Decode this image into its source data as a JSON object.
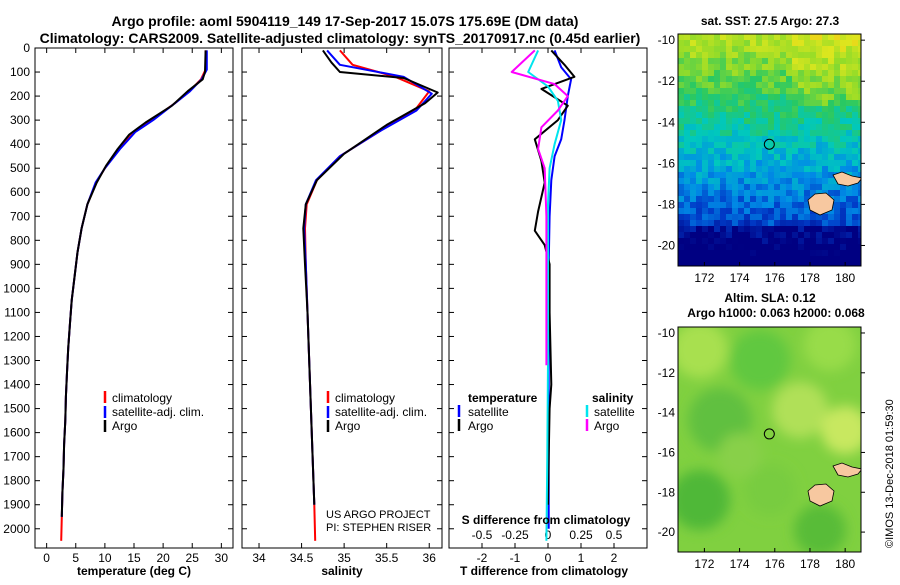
{
  "header": {
    "title_line1": "Argo profile: aoml 5904119_149 17-Sep-2017 15.07S 175.69E (DM data)",
    "title_line2": "Climatology: CARS2009. Satellite-adjusted climatology: synTS_20170917.nc (0.45d earlier)"
  },
  "credit": {
    "line1": "US ARGO PROJECT",
    "line2": "PI: STEPHEN RISER",
    "timestamp": "©IMOS 13-Dec-2018 01:59:30"
  },
  "colors": {
    "climatology": "#ff0000",
    "satellite": "#0000ff",
    "argo": "#000000",
    "s_satellite": "#00e5ee",
    "s_argo": "#ff00ff"
  },
  "chart_data": [
    {
      "id": "temperature",
      "type": "line",
      "xlabel": "temperature (deg C)",
      "ylabel": "",
      "xlim": [
        -2,
        32
      ],
      "ylim": [
        2080,
        0
      ],
      "xticks": [
        0,
        5,
        10,
        15,
        20,
        25,
        30
      ],
      "yticks": [
        0,
        100,
        200,
        300,
        400,
        500,
        600,
        700,
        800,
        900,
        1000,
        1100,
        1200,
        1300,
        1400,
        1500,
        1600,
        1700,
        1800,
        1900,
        2000
      ],
      "legend": [
        "climatology",
        "satellite-adj. clim.",
        "Argo"
      ],
      "series": [
        {
          "name": "climatology",
          "color": "#ff0000",
          "points": [
            [
              27.3,
              10
            ],
            [
              27.3,
              90
            ],
            [
              26.5,
              130
            ],
            [
              24.5,
              180
            ],
            [
              22,
              230
            ],
            [
              18,
              300
            ],
            [
              15,
              350
            ],
            [
              12.5,
              420
            ],
            [
              10,
              500
            ],
            [
              8.5,
              560
            ],
            [
              7,
              650
            ],
            [
              6,
              750
            ],
            [
              5.3,
              850
            ],
            [
              4.8,
              950
            ],
            [
              4.3,
              1050
            ],
            [
              4,
              1150
            ],
            [
              3.7,
              1250
            ],
            [
              3.5,
              1350
            ],
            [
              3.3,
              1450
            ],
            [
              3.2,
              1550
            ],
            [
              3,
              1650
            ],
            [
              2.9,
              1750
            ],
            [
              2.7,
              1850
            ],
            [
              2.6,
              1950
            ],
            [
              2.5,
              2050
            ]
          ]
        },
        {
          "name": "satellite-adj. clim.",
          "color": "#0000ff",
          "points": [
            [
              27.5,
              10
            ],
            [
              27.5,
              90
            ],
            [
              26.6,
              130
            ],
            [
              24.6,
              180
            ],
            [
              22,
              230
            ],
            [
              18.3,
              300
            ],
            [
              15.2,
              350
            ],
            [
              12.6,
              420
            ],
            [
              10,
              500
            ],
            [
              8.4,
              560
            ],
            [
              7,
              650
            ],
            [
              6,
              750
            ],
            [
              5.3,
              850
            ],
            [
              4.8,
              950
            ],
            [
              4.3,
              1050
            ],
            [
              4,
              1150
            ],
            [
              3.7,
              1250
            ],
            [
              3.5,
              1350
            ],
            [
              3.3,
              1450
            ],
            [
              3.2,
              1550
            ],
            [
              3,
              1650
            ],
            [
              2.9,
              1750
            ],
            [
              2.7,
              1850
            ],
            [
              2.6,
              1950
            ]
          ]
        },
        {
          "name": "Argo",
          "color": "#000000",
          "points": [
            [
              27.3,
              10
            ],
            [
              27.2,
              100
            ],
            [
              26.8,
              130
            ],
            [
              24.2,
              180
            ],
            [
              21.5,
              240
            ],
            [
              17,
              310
            ],
            [
              14.2,
              360
            ],
            [
              12.2,
              420
            ],
            [
              10.2,
              490
            ],
            [
              8.6,
              560
            ],
            [
              7,
              650
            ],
            [
              6,
              750
            ],
            [
              5.3,
              850
            ],
            [
              4.8,
              950
            ],
            [
              4.3,
              1050
            ],
            [
              4,
              1150
            ],
            [
              3.7,
              1250
            ],
            [
              3.5,
              1350
            ],
            [
              3.3,
              1450
            ],
            [
              3.2,
              1550
            ],
            [
              3,
              1650
            ],
            [
              2.9,
              1750
            ],
            [
              2.7,
              1850
            ],
            [
              2.6,
              1950
            ]
          ]
        }
      ]
    },
    {
      "id": "salinity",
      "type": "line",
      "xlabel": "salinity",
      "ylabel": "",
      "xlim": [
        33.8,
        36.15
      ],
      "ylim": [
        2080,
        0
      ],
      "xticks": [
        34,
        34.5,
        35,
        35.5,
        36
      ],
      "xticklabels": [
        "34",
        "34.5",
        "35",
        "35.5",
        "36"
      ],
      "legend": [
        "climatology",
        "satellite-adj. clim.",
        "Argo"
      ],
      "series": [
        {
          "name": "climatology",
          "color": "#ff0000",
          "points": [
            [
              34.95,
              10
            ],
            [
              35.1,
              70
            ],
            [
              35.6,
              120
            ],
            [
              36.0,
              180
            ],
            [
              35.85,
              250
            ],
            [
              35.4,
              350
            ],
            [
              34.95,
              450
            ],
            [
              34.68,
              550
            ],
            [
              34.56,
              650
            ],
            [
              34.54,
              750
            ],
            [
              34.55,
              900
            ],
            [
              34.57,
              1100
            ],
            [
              34.59,
              1300
            ],
            [
              34.61,
              1500
            ],
            [
              34.63,
              1700
            ],
            [
              34.65,
              1900
            ],
            [
              34.66,
              2050
            ]
          ]
        },
        {
          "name": "satellite-adj. clim.",
          "color": "#0000ff",
          "points": [
            [
              34.8,
              10
            ],
            [
              34.95,
              70
            ],
            [
              35.7,
              120
            ],
            [
              36.03,
              190
            ],
            [
              35.85,
              260
            ],
            [
              35.4,
              350
            ],
            [
              34.95,
              450
            ],
            [
              34.67,
              550
            ],
            [
              34.55,
              650
            ],
            [
              34.53,
              750
            ],
            [
              34.55,
              900
            ],
            [
              34.57,
              1100
            ],
            [
              34.59,
              1300
            ],
            [
              34.61,
              1500
            ],
            [
              34.63,
              1700
            ],
            [
              34.65,
              1900
            ]
          ]
        },
        {
          "name": "Argo",
          "color": "#000000",
          "points": [
            [
              34.75,
              10
            ],
            [
              34.85,
              60
            ],
            [
              34.95,
              100
            ],
            [
              35.7,
              125
            ],
            [
              36.1,
              185
            ],
            [
              35.95,
              230
            ],
            [
              35.5,
              320
            ],
            [
              35.0,
              440
            ],
            [
              34.68,
              550
            ],
            [
              34.55,
              650
            ],
            [
              34.52,
              750
            ],
            [
              34.54,
              900
            ],
            [
              34.57,
              1100
            ],
            [
              34.59,
              1300
            ],
            [
              34.61,
              1500
            ],
            [
              34.63,
              1700
            ],
            [
              34.65,
              1900
            ]
          ]
        }
      ]
    },
    {
      "id": "differences",
      "type": "line",
      "xlabel": "T difference from climatology",
      "xlabel2": "S difference from climatology",
      "ylabel": "",
      "xlim": [
        -3,
        3
      ],
      "ylim": [
        2080,
        0
      ],
      "xticks": [
        -2,
        -1,
        0,
        1,
        2
      ],
      "xticks_s": [
        -0.5,
        -0.25,
        0,
        0.25,
        0.5
      ],
      "xticklabels_s": [
        "-0.5",
        "-0.25",
        "0",
        "0.25",
        "0.5"
      ],
      "legend_t_title": "temperature",
      "legend_s_title": "salinity",
      "legend_t": [
        "satellite",
        "Argo"
      ],
      "legend_s": [
        "satellite",
        "Argo"
      ],
      "series": [
        {
          "name": "T satellite",
          "color": "#0000ff",
          "points": [
            [
              0.2,
              10
            ],
            [
              0.4,
              80
            ],
            [
              0.7,
              130
            ],
            [
              0.6,
              200
            ],
            [
              0.5,
              300
            ],
            [
              0.4,
              380
            ],
            [
              0.2,
              450
            ],
            [
              0.1,
              550
            ],
            [
              0.05,
              700
            ],
            [
              0.02,
              900
            ],
            [
              0.02,
              1100
            ],
            [
              0.02,
              1400
            ],
            [
              0.02,
              1800
            ],
            [
              0.02,
              2000
            ]
          ]
        },
        {
          "name": "T Argo",
          "color": "#000000",
          "points": [
            [
              0.1,
              10
            ],
            [
              0.5,
              70
            ],
            [
              0.8,
              120
            ],
            [
              -0.2,
              170
            ],
            [
              0.6,
              240
            ],
            [
              0.3,
              300
            ],
            [
              -0.4,
              380
            ],
            [
              -0.2,
              470
            ],
            [
              -0.1,
              560
            ],
            [
              -0.3,
              680
            ],
            [
              -0.4,
              760
            ],
            [
              -0.1,
              820
            ],
            [
              0.05,
              900
            ],
            [
              0.05,
              1100
            ],
            [
              0.1,
              1400
            ],
            [
              0.05,
              1500
            ],
            [
              0.02,
              1700
            ],
            [
              0.0,
              1900
            ]
          ]
        },
        {
          "name": "S satellite",
          "color": "#00e5ee",
          "points": [
            [
              -0.3,
              10
            ],
            [
              -0.6,
              100
            ],
            [
              0.0,
              160
            ],
            [
              0.3,
              220
            ],
            [
              0.4,
              300
            ],
            [
              0.2,
              400
            ],
            [
              0.05,
              500
            ],
            [
              0.0,
              650
            ],
            [
              0.0,
              900
            ],
            [
              0.0,
              1300
            ],
            [
              -0.02,
              1700
            ],
            [
              -0.05,
              2050
            ]
          ]
        },
        {
          "name": "S Argo",
          "color": "#ff00ff",
          "points": [
            [
              -0.4,
              10
            ],
            [
              -1.1,
              100
            ],
            [
              0.2,
              150
            ],
            [
              0.6,
              200
            ],
            [
              0.3,
              260
            ],
            [
              -0.2,
              330
            ],
            [
              -0.3,
              420
            ],
            [
              -0.1,
              500
            ],
            [
              -0.05,
              700
            ],
            [
              -0.05,
              900
            ],
            [
              -0.05,
              1200
            ],
            [
              -0.05,
              1320
            ]
          ]
        }
      ]
    },
    {
      "id": "sst_map",
      "type": "heatmap",
      "title": "sat. SST: 27.5 Argo: 27.3",
      "xticks": [
        172,
        174,
        176,
        178,
        180
      ],
      "yticks": [
        -10,
        -12,
        -14,
        -16,
        -18,
        -20
      ],
      "xlim": [
        170.5,
        180.9
      ],
      "ylim": [
        -21,
        -9.7
      ],
      "argo_position": [
        175.69,
        -15.07
      ]
    },
    {
      "id": "sla_map",
      "type": "heatmap",
      "title": "Altim. SLA: 0.12",
      "subtitle": "Argo h1000: 0.063 h2000: 0.068",
      "xticks": [
        172,
        174,
        176,
        178,
        180
      ],
      "yticks": [
        -10,
        -12,
        -14,
        -16,
        -18,
        -20
      ],
      "xlim": [
        170.5,
        180.9
      ],
      "ylim": [
        -21,
        -9.7
      ],
      "argo_position": [
        175.69,
        -15.07
      ]
    }
  ]
}
